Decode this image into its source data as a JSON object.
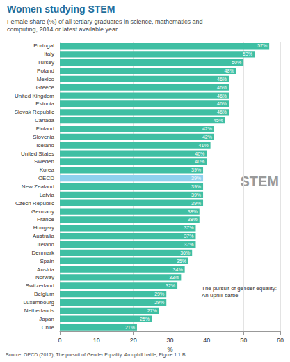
{
  "chart_data": {
    "type": "bar",
    "orientation": "horizontal",
    "title": "Women studying STEM",
    "subtitle": "Female share (%) of all tertiary graduates in science, mathematics and computing, 2014 or latest available year",
    "x_label": "%",
    "source": "Source: OECD (2017), The pursuit of Gender Equality: An uphill battle, Figure 1.1.B",
    "annotations": [
      "STEM",
      "The pursuit of gender equality: An uphill battle"
    ],
    "categories": [
      "Portugal",
      "Italy",
      "Turkey",
      "Poland",
      "Mexico",
      "Greece",
      "United Kingdom",
      "Estonia",
      "Slovak Republic",
      "Canada",
      "Finland",
      "Slovenia",
      "Iceland",
      "United States",
      "Sweden",
      "Korea",
      "OECD",
      "New Zealand",
      "Latvia",
      "Czech Republic",
      "Germany",
      "France",
      "Hungary",
      "Australia",
      "Ireland",
      "Denmark",
      "Spain",
      "Austria",
      "Norway",
      "Switzerland",
      "Belgium",
      "Luxembourg",
      "Netherlands",
      "Japan",
      "Chile"
    ],
    "values": [
      57,
      53,
      50,
      48,
      46,
      46,
      46,
      46,
      46,
      45,
      42,
      42,
      41,
      40,
      40,
      39,
      39,
      39,
      39,
      39,
      38,
      38,
      37,
      37,
      37,
      36,
      35,
      34,
      33,
      32,
      29,
      29,
      27,
      25,
      21
    ],
    "value_labels": [
      "57%",
      "53%",
      "50%",
      "48%",
      "46%",
      "46%",
      "46%",
      "46%",
      "46%",
      "45%",
      "42%",
      "42%",
      "41%",
      "40%",
      "40%",
      "39%",
      "39%",
      "39%",
      "39%",
      "39%",
      "38%",
      "38%",
      "37%",
      "37%",
      "37%",
      "36%",
      "35%",
      "34%",
      "33%",
      "32%",
      "29%",
      "29%",
      "27%",
      "25%",
      "21%"
    ],
    "colors": [
      "#3fbfa3",
      "#3fbfa3",
      "#3fbfa3",
      "#3fbfa3",
      "#3fbfa3",
      "#3fbfa3",
      "#3fbfa3",
      "#3fbfa3",
      "#3fbfa3",
      "#3fbfa3",
      "#3fbfa3",
      "#3fbfa3",
      "#3fbfa3",
      "#3fbfa3",
      "#3fbfa3",
      "#3fbfa3",
      "#8ed1ee",
      "#3fbfa3",
      "#3fbfa3",
      "#3fbfa3",
      "#3fbfa3",
      "#3fbfa3",
      "#3fbfa3",
      "#3fbfa3",
      "#3fbfa3",
      "#3fbfa3",
      "#3fbfa3",
      "#3fbfa3",
      "#3fbfa3",
      "#3fbfa3",
      "#3fbfa3",
      "#3fbfa3",
      "#3fbfa3",
      "#3fbfa3",
      "#3fbfa3"
    ],
    "xlim": [
      0,
      60
    ],
    "xticks": [
      0,
      10,
      20,
      30,
      40,
      50,
      60
    ],
    "grid": true,
    "data_labels": true
  }
}
